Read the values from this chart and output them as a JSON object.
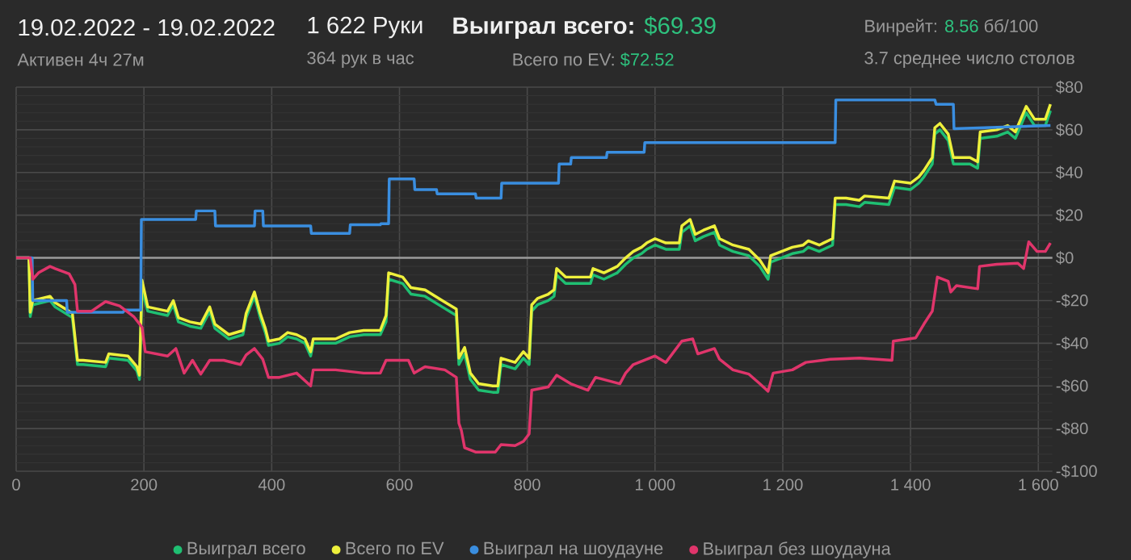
{
  "chart_data": {
    "type": "line",
    "title": "19.02.2022 - 19.02.2022",
    "annotations": [
      "Активен 4ч 27м",
      "1 622 Руки",
      "364 рук в час",
      "Выиграл всего:",
      "$69.39",
      "Всего по EV:",
      "$72.52",
      "Винрейт:",
      "8.56",
      "бб/100",
      "3.7 среднее число столов"
    ],
    "xlim": [
      0,
      1622
    ],
    "ylim": [
      -100,
      80
    ],
    "xticks": [
      0,
      200,
      400,
      600,
      800,
      {
        "value": 1000,
        "label": "1 000"
      },
      {
        "value": 1200,
        "label": "1 200"
      },
      {
        "value": 1400,
        "label": "1 400"
      },
      {
        "value": 1600,
        "label": "1 600"
      }
    ],
    "yticks": [
      {
        "value": -100,
        "label": "-$100"
      },
      {
        "value": -80,
        "label": "-$80"
      },
      {
        "value": -60,
        "label": "-$60"
      },
      {
        "value": -40,
        "label": "-$40"
      },
      {
        "value": -20,
        "label": "-$20"
      },
      {
        "value": 0,
        "label": "$0"
      },
      {
        "value": 20,
        "label": "$20"
      },
      {
        "value": 40,
        "label": "$40"
      },
      {
        "value": 60,
        "label": "$60"
      },
      {
        "value": 80,
        "label": "$80"
      }
    ],
    "grid": true,
    "legend": "bottom",
    "marker": "none",
    "line_style": "solid",
    "ref_lines": [
      {
        "axis": "y",
        "value": 0,
        "color": "#9a9a9a"
      }
    ],
    "series": [
      {
        "name": "Выиграл всего",
        "color": "#1fbf72",
        "x": [
          0,
          20,
          22,
          26,
          53,
          61,
          88,
          96,
          105,
          140,
          145,
          175,
          189,
          193,
          197,
          206,
          237,
          246,
          254,
          272,
          289,
          303,
          311,
          333,
          355,
          360,
          373,
          382,
          390,
          395,
          412,
          425,
          439,
          452,
          461,
          465,
          500,
          522,
          544,
          570,
          579,
          583,
          605,
          618,
          640,
          667,
          689,
          693,
          702,
          711,
          724,
          746,
          754,
          759,
          781,
          794,
          803,
          807,
          816,
          833,
          842,
          846,
          860,
          877,
          899,
          903,
          920,
          941,
          954,
          966,
          979,
          987,
          1000,
          1017,
          1038,
          1042,
          1055,
          1063,
          1076,
          1093,
          1101,
          1122,
          1147,
          1164,
          1177,
          1181,
          1198,
          1215,
          1232,
          1240,
          1257,
          1278,
          1282,
          1299,
          1320,
          1328,
          1366,
          1375,
          1400,
          1413,
          1421,
          1434,
          1438,
          1446,
          1459,
          1467,
          1493,
          1505,
          1509,
          1535,
          1552,
          1564,
          1581,
          1594,
          1611,
          1619
        ],
        "values": [
          0,
          0,
          -27.5,
          -22,
          -20,
          -23,
          -28,
          -50,
          -50,
          -51,
          -47,
          -48,
          -53,
          -57,
          -15,
          -25,
          -27,
          -22,
          -30,
          -32,
          -33,
          -25,
          -33,
          -38,
          -36,
          -28,
          -18,
          -28,
          -35,
          -41,
          -40,
          -37,
          -38,
          -40,
          -46,
          -40,
          -40,
          -37,
          -36,
          -36,
          -30,
          -10,
          -12,
          -17,
          -18,
          -23,
          -27,
          -50,
          -45,
          -57,
          -62,
          -63,
          -63,
          -50,
          -52,
          -47,
          -50,
          -25,
          -22,
          -20,
          -18,
          -8,
          -12,
          -12,
          -12,
          -8,
          -10,
          -7,
          -3,
          0,
          2,
          4,
          6,
          4,
          4,
          12,
          15,
          8,
          10,
          12,
          6,
          3,
          1,
          -4,
          -10,
          -2,
          0,
          2,
          3,
          5,
          3,
          6,
          25,
          25,
          24,
          26,
          25,
          33,
          32,
          35,
          38,
          44,
          58,
          60,
          55,
          44,
          44,
          42,
          56,
          57,
          59,
          56,
          68,
          62,
          62,
          69
        ]
      },
      {
        "name": "Всего по EV",
        "color": "#eef03c",
        "x": [
          0,
          20,
          22,
          26,
          53,
          61,
          88,
          96,
          105,
          140,
          145,
          175,
          189,
          193,
          197,
          206,
          237,
          246,
          254,
          272,
          289,
          303,
          311,
          333,
          355,
          360,
          373,
          382,
          390,
          395,
          412,
          425,
          439,
          452,
          461,
          465,
          500,
          522,
          544,
          570,
          579,
          583,
          605,
          618,
          640,
          667,
          689,
          693,
          702,
          711,
          724,
          746,
          754,
          759,
          781,
          794,
          803,
          807,
          816,
          833,
          842,
          846,
          860,
          877,
          899,
          903,
          920,
          941,
          954,
          966,
          979,
          987,
          1000,
          1017,
          1038,
          1042,
          1055,
          1063,
          1076,
          1093,
          1101,
          1122,
          1147,
          1164,
          1177,
          1181,
          1198,
          1215,
          1232,
          1240,
          1257,
          1278,
          1282,
          1299,
          1320,
          1328,
          1366,
          1375,
          1400,
          1413,
          1421,
          1434,
          1438,
          1446,
          1459,
          1467,
          1493,
          1505,
          1509,
          1535,
          1552,
          1564,
          1581,
          1594,
          1611,
          1619
        ],
        "values": [
          0,
          0,
          -25.5,
          -20,
          -18,
          -21,
          -26,
          -48,
          -48,
          -49,
          -45,
          -46,
          -51,
          -55,
          -10.5,
          -23,
          -25,
          -20,
          -28,
          -30,
          -31,
          -23,
          -31,
          -36,
          -34,
          -26,
          -16,
          -26,
          -33,
          -39,
          -38,
          -35,
          -36,
          -38,
          -44,
          -38,
          -38,
          -35,
          -34,
          -34,
          -27,
          -7,
          -9,
          -14,
          -15,
          -20,
          -24,
          -47,
          -42,
          -54,
          -59,
          -60,
          -60,
          -47,
          -49,
          -44,
          -47,
          -22,
          -19,
          -17,
          -15,
          -5,
          -9,
          -9,
          -9,
          -5,
          -7,
          -4,
          0,
          3,
          5,
          7,
          9,
          7,
          7,
          15,
          18,
          11,
          13,
          15,
          9,
          6,
          4,
          -1,
          -7,
          1,
          3,
          5,
          6,
          8,
          6,
          9,
          28,
          28,
          27,
          29,
          28,
          36,
          35,
          38,
          41,
          47,
          61,
          63,
          58,
          47,
          47,
          45,
          59,
          60,
          62,
          59,
          71,
          65,
          65,
          72
        ]
      },
      {
        "name": "Выиграл на шоудауне",
        "color": "#3a8ee0",
        "x": [
          0,
          25,
          26,
          79,
          80,
          167,
          170,
          195,
          196,
          281,
          282,
          311,
          312,
          373,
          374,
          386,
          387,
          461,
          462,
          522,
          523,
          570,
          571,
          583,
          584,
          623,
          624,
          658,
          659,
          719,
          720,
          759,
          760,
          849,
          850,
          868,
          869,
          924,
          925,
          983,
          984,
          1282,
          1283,
          1438,
          1440,
          1467,
          1468,
          1619
        ],
        "values": [
          0,
          0,
          -20,
          -20,
          -25.5,
          -25.5,
          -24.5,
          -24.5,
          18,
          18,
          22,
          22,
          15,
          15,
          22,
          22,
          15,
          15,
          11.5,
          11.5,
          15.5,
          15.5,
          16,
          16,
          37,
          37,
          32,
          32,
          30,
          30,
          28,
          28,
          35,
          35,
          44,
          44,
          47,
          47,
          49.5,
          49.5,
          54,
          54,
          74,
          74,
          72,
          72,
          60.5,
          62
        ]
      },
      {
        "name": "Выиграл без шоудауна",
        "color": "#e0356b",
        "x": [
          0,
          22,
          26,
          35,
          53,
          61,
          83,
          92,
          96,
          118,
          140,
          162,
          184,
          197,
          202,
          237,
          250,
          263,
          276,
          289,
          303,
          325,
          351,
          360,
          373,
          386,
          395,
          412,
          439,
          461,
          465,
          500,
          544,
          570,
          579,
          614,
          623,
          640,
          671,
          689,
          693,
          697,
          702,
          719,
          750,
          759,
          781,
          794,
          803,
          807,
          833,
          846,
          868,
          895,
          907,
          945,
          954,
          966,
          1000,
          1017,
          1042,
          1059,
          1067,
          1093,
          1101,
          1122,
          1147,
          1164,
          1177,
          1185,
          1215,
          1236,
          1274,
          1320,
          1371,
          1373,
          1408,
          1421,
          1434,
          1442,
          1459,
          1463,
          1472,
          1505,
          1508,
          1535,
          1568,
          1577,
          1585,
          1598,
          1611,
          1619
        ],
        "values": [
          0,
          0,
          -10,
          -7,
          -4,
          -5,
          -7.5,
          -12.5,
          -25,
          -25,
          -20.5,
          -22.5,
          -27.5,
          -32.5,
          -44,
          -46,
          -42.5,
          -54,
          -48,
          -54.5,
          -48,
          -48,
          -50,
          -45.5,
          -42.5,
          -47.5,
          -56,
          -56,
          -54,
          -60,
          -52.5,
          -52.5,
          -54,
          -54,
          -48,
          -48,
          -54,
          -51,
          -52.5,
          -56,
          -77.5,
          -81,
          -89,
          -91,
          -91,
          -87.5,
          -88,
          -86,
          -82.5,
          -62,
          -60.5,
          -55,
          -59,
          -62,
          -56,
          -59,
          -54,
          -50,
          -46,
          -49,
          -39,
          -38,
          -45,
          -42.5,
          -47.5,
          -52.5,
          -54.5,
          -59,
          -62.5,
          -54,
          -52.5,
          -49,
          -47.5,
          -47,
          -48,
          -39,
          -37.5,
          -31,
          -25,
          -9,
          -11,
          -16,
          -13,
          -14.5,
          -4,
          -3,
          -2.5,
          -5,
          7.5,
          3,
          3,
          7
        ]
      }
    ]
  }
}
